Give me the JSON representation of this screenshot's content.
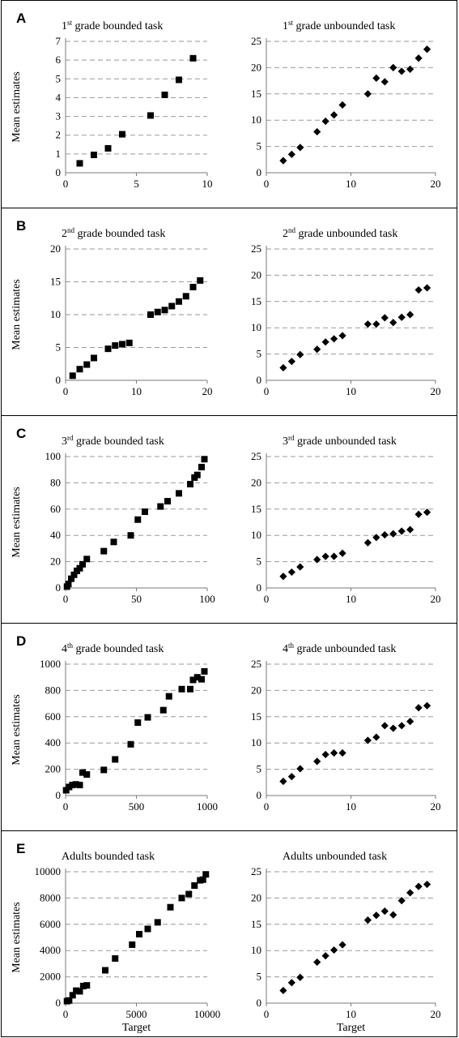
{
  "panels": [
    {
      "letter": "A",
      "charts": [
        {
          "type": "scatter",
          "title": "1st grade bounded task",
          "title_parts": [
            "1",
            "st",
            " grade bounded task"
          ],
          "ylabel": "Mean estimates",
          "xlabel": "",
          "marker": "square",
          "grid": "horizontal-dashed",
          "xlim": [
            0,
            10
          ],
          "ylim": [
            0,
            7
          ],
          "xticks": [
            0,
            5,
            10
          ],
          "yticks": [
            0,
            1,
            2,
            3,
            4,
            5,
            6,
            7
          ],
          "x": [
            1,
            2,
            3,
            4,
            6,
            7,
            8,
            9
          ],
          "y": [
            0.5,
            0.95,
            1.3,
            2.05,
            3.05,
            4.15,
            4.95,
            6.1
          ]
        },
        {
          "type": "scatter",
          "title": "1st grade unbounded task",
          "title_parts": [
            "1",
            "st",
            " grade unbounded task"
          ],
          "ylabel": "",
          "xlabel": "",
          "marker": "diamond",
          "grid": "horizontal-dashed",
          "xlim": [
            0,
            20
          ],
          "ylim": [
            0,
            25
          ],
          "xticks": [
            0,
            10,
            20
          ],
          "yticks": [
            0,
            5,
            10,
            15,
            20,
            25
          ],
          "x": [
            2,
            3,
            4,
            6,
            7,
            8,
            9,
            12,
            13,
            14,
            15,
            16,
            17,
            18,
            19
          ],
          "y": [
            2.3,
            3.5,
            4.8,
            7.8,
            9.8,
            11.0,
            12.9,
            15.0,
            18.0,
            17.3,
            20.0,
            19.3,
            19.7,
            21.8,
            23.5
          ]
        }
      ]
    },
    {
      "letter": "B",
      "charts": [
        {
          "type": "scatter",
          "title": "2nd grade bounded task",
          "title_parts": [
            "2",
            "nd",
            " grade bounded task"
          ],
          "ylabel": "Mean estimates",
          "xlabel": "",
          "marker": "square",
          "grid": "horizontal-dashed",
          "xlim": [
            0,
            20
          ],
          "ylim": [
            0,
            20
          ],
          "xticks": [
            0,
            10,
            20
          ],
          "yticks": [
            0,
            5,
            10,
            15,
            20
          ],
          "x": [
            1,
            2,
            3,
            4,
            6,
            7,
            8,
            9,
            12,
            13,
            14,
            15,
            16,
            17,
            18,
            19
          ],
          "y": [
            0.7,
            1.7,
            2.4,
            3.4,
            4.8,
            5.3,
            5.5,
            5.7,
            10.0,
            10.4,
            10.7,
            11.3,
            12.0,
            12.8,
            14.2,
            15.2
          ]
        },
        {
          "type": "scatter",
          "title": "2nd grade unbounded task",
          "title_parts": [
            "2",
            "nd",
            " grade unbounded task"
          ],
          "ylabel": "",
          "xlabel": "",
          "marker": "diamond",
          "grid": "horizontal-dashed",
          "xlim": [
            0,
            20
          ],
          "ylim": [
            0,
            25
          ],
          "xticks": [
            0,
            10,
            20
          ],
          "yticks": [
            0,
            5,
            10,
            15,
            20,
            25
          ],
          "x": [
            2,
            3,
            4,
            6,
            7,
            8,
            9,
            12,
            13,
            14,
            15,
            16,
            17,
            18,
            19
          ],
          "y": [
            2.4,
            3.6,
            4.9,
            5.9,
            7.3,
            7.9,
            8.5,
            10.7,
            10.7,
            11.9,
            11.0,
            12.0,
            12.5,
            17.2,
            17.6
          ]
        }
      ]
    },
    {
      "letter": "C",
      "charts": [
        {
          "type": "scatter",
          "title": "3rd grade bounded task",
          "title_parts": [
            "3",
            "rd",
            " grade bounded task"
          ],
          "ylabel": "Mean estimates",
          "xlabel": "",
          "marker": "square",
          "grid": "horizontal-dashed",
          "xlim": [
            0,
            100
          ],
          "ylim": [
            0,
            100
          ],
          "xticks": [
            0,
            50,
            100
          ],
          "yticks": [
            0,
            20,
            40,
            60,
            80,
            100
          ],
          "x": [
            1,
            2,
            4,
            6,
            8,
            10,
            12,
            15,
            27,
            34,
            46,
            51,
            56,
            67,
            72,
            80,
            88,
            91,
            93,
            96,
            98
          ],
          "y": [
            1,
            3,
            7,
            10,
            13,
            15,
            18,
            22,
            28,
            35,
            40,
            52,
            58,
            62,
            66,
            72,
            79,
            84,
            86,
            92,
            98
          ]
        },
        {
          "type": "scatter",
          "title": "3rd grade unbounded task",
          "title_parts": [
            "3",
            "rd",
            " grade unbounded task"
          ],
          "ylabel": "",
          "xlabel": "",
          "marker": "diamond",
          "grid": "horizontal-dashed",
          "xlim": [
            0,
            20
          ],
          "ylim": [
            0,
            25
          ],
          "xticks": [
            0,
            10,
            20
          ],
          "yticks": [
            0,
            5,
            10,
            15,
            20,
            25
          ],
          "x": [
            2,
            3,
            4,
            6,
            7,
            8,
            9,
            12,
            13,
            14,
            15,
            16,
            17,
            18,
            19
          ],
          "y": [
            2.2,
            3.0,
            4.0,
            5.4,
            6.0,
            6.0,
            6.6,
            8.6,
            9.6,
            10.1,
            10.3,
            10.8,
            11.1,
            14.0,
            14.4
          ]
        }
      ]
    },
    {
      "letter": "D",
      "charts": [
        {
          "type": "scatter",
          "title": "4th grade bounded task",
          "title_parts": [
            "4",
            "th",
            " grade bounded task"
          ],
          "ylabel": "Mean estimates",
          "xlabel": "",
          "marker": "square",
          "grid": "horizontal-dashed",
          "xlim": [
            0,
            1000
          ],
          "ylim": [
            0,
            1000
          ],
          "xticks": [
            0,
            500,
            1000
          ],
          "yticks": [
            0,
            200,
            400,
            600,
            800,
            1000
          ],
          "x": [
            4,
            25,
            48,
            72,
            100,
            120,
            150,
            270,
            350,
            460,
            510,
            580,
            690,
            730,
            820,
            880,
            900,
            930,
            960,
            980
          ],
          "y": [
            40,
            65,
            80,
            85,
            80,
            175,
            160,
            195,
            275,
            390,
            555,
            595,
            650,
            755,
            810,
            810,
            880,
            900,
            885,
            945
          ]
        },
        {
          "type": "scatter",
          "title": "4th grade unbounded task",
          "title_parts": [
            "4",
            "th",
            " grade unbounded task"
          ],
          "ylabel": "",
          "xlabel": "",
          "marker": "diamond",
          "grid": "horizontal-dashed",
          "xlim": [
            0,
            20
          ],
          "ylim": [
            0,
            25
          ],
          "xticks": [
            0,
            10,
            20
          ],
          "yticks": [
            0,
            5,
            10,
            15,
            20,
            25
          ],
          "x": [
            2,
            3,
            4,
            6,
            7,
            8,
            9,
            12,
            13,
            14,
            15,
            16,
            17,
            18,
            19
          ],
          "y": [
            2.7,
            3.6,
            5.1,
            6.5,
            7.8,
            8.1,
            8.1,
            10.5,
            11.1,
            13.3,
            12.8,
            13.3,
            14.1,
            16.7,
            17.1
          ]
        }
      ]
    },
    {
      "letter": "E",
      "charts": [
        {
          "type": "scatter",
          "title": "Adults bounded task",
          "title_parts": [
            "Adults bounded task"
          ],
          "ylabel": "Mean estimates",
          "xlabel": "Target",
          "marker": "square",
          "grid": "horizontal-dashed",
          "xlim": [
            0,
            10000
          ],
          "ylim": [
            0,
            10000
          ],
          "xticks": [
            0,
            5000,
            10000
          ],
          "yticks": [
            0,
            2000,
            4000,
            6000,
            8000,
            10000
          ],
          "x": [
            100,
            250,
            500,
            750,
            1000,
            1250,
            1500,
            2800,
            3500,
            4700,
            5200,
            5800,
            6500,
            7400,
            8200,
            8700,
            9100,
            9500,
            9700,
            9900
          ],
          "y": [
            150,
            200,
            600,
            950,
            900,
            1300,
            1350,
            2500,
            3400,
            4450,
            5250,
            5650,
            6150,
            7300,
            8000,
            8300,
            8950,
            9350,
            9400,
            9800
          ]
        },
        {
          "type": "scatter",
          "title": "Adults unbounded task",
          "title_parts": [
            "Adults unbounded task"
          ],
          "ylabel": "",
          "xlabel": "Target",
          "marker": "diamond",
          "grid": "horizontal-dashed",
          "xlim": [
            0,
            20
          ],
          "ylim": [
            0,
            25
          ],
          "xticks": [
            0,
            10,
            20
          ],
          "yticks": [
            0,
            5,
            10,
            15,
            20,
            25
          ],
          "x": [
            2,
            3,
            4,
            6,
            7,
            8,
            9,
            12,
            13,
            14,
            15,
            16,
            17,
            18,
            19
          ],
          "y": [
            2.4,
            3.9,
            4.9,
            7.8,
            9.0,
            10.1,
            11.1,
            15.8,
            16.7,
            17.5,
            16.8,
            19.5,
            21.0,
            22.2,
            22.6
          ]
        }
      ]
    }
  ]
}
